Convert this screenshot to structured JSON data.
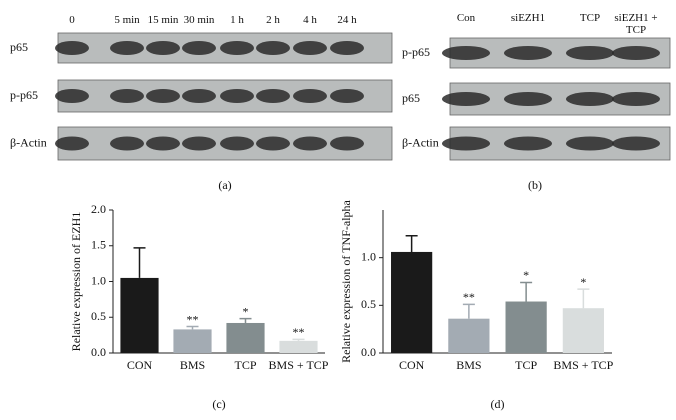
{
  "blots": [
    {
      "columns": [
        "0",
        "5 min",
        "15 min",
        "30 min",
        "1 h",
        "2 h",
        "4 h",
        "24 h"
      ],
      "rows": [
        "p65",
        "p-p65",
        "β-Actin"
      ],
      "caption": "(a)"
    },
    {
      "columns": [
        "Con",
        "siEZH1",
        "TCP",
        "siEZH1 + TCP"
      ],
      "rows": [
        "p-p65",
        "p65",
        "β-Actin"
      ],
      "caption": "(b)"
    }
  ],
  "chart_data": [
    {
      "type": "bar",
      "ylabel": "Relative expression of EZH1",
      "caption": "(c)",
      "categories": [
        "CON",
        "BMS",
        "TCP",
        "BMS + TCP"
      ],
      "values": [
        1.05,
        0.33,
        0.42,
        0.17
      ],
      "errors": [
        0.42,
        0.04,
        0.06,
        0.02
      ],
      "colors": [
        "#1a1a1a",
        "#a3abb3",
        "#838d8f",
        "#d9dddd"
      ],
      "annotations": [
        null,
        "**",
        "*",
        "**"
      ],
      "ylim": [
        0,
        2.0
      ],
      "yticks": [
        {
          "value": 0,
          "label": "0.0"
        },
        0.5,
        {
          "value": 1,
          "label": "1.0"
        },
        1.5,
        {
          "value": 2,
          "label": "2.0"
        }
      ]
    },
    {
      "type": "bar",
      "ylabel": "Relative expression of TNF-alpha",
      "caption": "(d)",
      "categories": [
        "CON",
        "BMS",
        "TCP",
        "BMS + TCP"
      ],
      "values": [
        1.06,
        0.36,
        0.54,
        0.47
      ],
      "errors": [
        0.17,
        0.15,
        0.2,
        0.2
      ],
      "colors": [
        "#1a1a1a",
        "#a3abb3",
        "#838d8f",
        "#d9dddd"
      ],
      "annotations": [
        null,
        "**",
        "*",
        "*"
      ],
      "ylim": [
        0,
        1.5
      ],
      "yticks": [
        {
          "value": 0,
          "label": "0.0"
        },
        0.5,
        {
          "value": 1,
          "label": "1.0"
        }
      ]
    }
  ]
}
